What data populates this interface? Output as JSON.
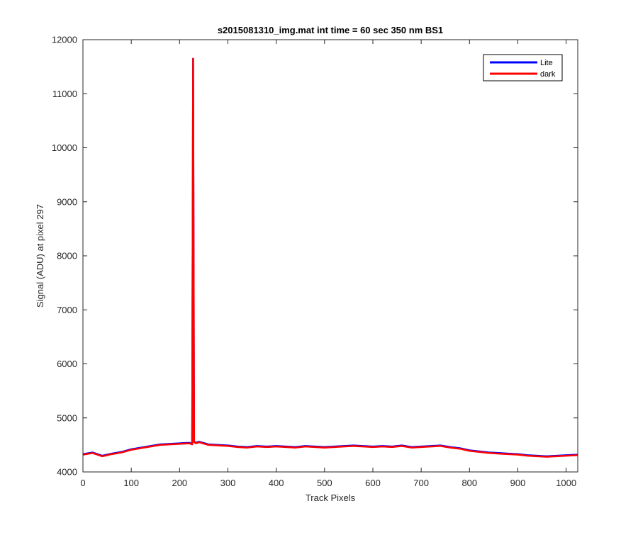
{
  "chart_data": {
    "type": "line",
    "title": "s2015081310_img.mat int time = 60 sec  350 nm BS1",
    "xlabel": "Track Pixels",
    "ylabel": "Signal (ADU) at pixel 297",
    "xlim": [
      0,
      1024
    ],
    "ylim": [
      4000,
      12000
    ],
    "xticks": [
      0,
      100,
      200,
      300,
      400,
      500,
      600,
      700,
      800,
      900,
      1000
    ],
    "yticks": [
      4000,
      5000,
      6000,
      7000,
      8000,
      9000,
      10000,
      11000,
      12000
    ],
    "grid": false,
    "legend_position": "top-right",
    "series": [
      {
        "name": "Lite",
        "color": "#0000ff",
        "x": [
          0,
          20,
          40,
          60,
          80,
          100,
          120,
          140,
          160,
          180,
          200,
          220,
          226,
          228,
          230,
          234,
          240,
          260,
          280,
          300,
          320,
          340,
          360,
          380,
          400,
          420,
          440,
          460,
          480,
          500,
          520,
          540,
          560,
          580,
          600,
          620,
          640,
          660,
          680,
          700,
          720,
          740,
          760,
          780,
          800,
          820,
          840,
          860,
          880,
          900,
          920,
          940,
          960,
          980,
          1000,
          1024
        ],
        "y": [
          4330,
          4360,
          4300,
          4340,
          4370,
          4420,
          4450,
          4480,
          4510,
          4520,
          4530,
          4540,
          4520,
          11650,
          4560,
          4540,
          4560,
          4510,
          4500,
          4490,
          4470,
          4460,
          4480,
          4470,
          4480,
          4470,
          4460,
          4480,
          4470,
          4460,
          4470,
          4480,
          4490,
          4480,
          4470,
          4480,
          4470,
          4490,
          4460,
          4470,
          4480,
          4490,
          4460,
          4440,
          4400,
          4380,
          4360,
          4350,
          4340,
          4330,
          4310,
          4300,
          4290,
          4300,
          4310,
          4320
        ]
      },
      {
        "name": "dark",
        "color": "#ff0000",
        "x": [
          0,
          20,
          40,
          60,
          80,
          100,
          120,
          140,
          160,
          180,
          200,
          220,
          226,
          228,
          230,
          234,
          240,
          260,
          280,
          300,
          320,
          340,
          360,
          380,
          400,
          420,
          440,
          460,
          480,
          500,
          520,
          540,
          560,
          580,
          600,
          620,
          640,
          660,
          680,
          700,
          720,
          740,
          760,
          780,
          800,
          820,
          840,
          860,
          880,
          900,
          920,
          940,
          960,
          980,
          1000,
          1024
        ],
        "y": [
          4320,
          4350,
          4290,
          4330,
          4360,
          4410,
          4440,
          4470,
          4500,
          4510,
          4520,
          4530,
          4510,
          11650,
          4550,
          4530,
          4550,
          4500,
          4490,
          4480,
          4460,
          4450,
          4470,
          4460,
          4470,
          4460,
          4450,
          4470,
          4460,
          4450,
          4460,
          4470,
          4480,
          4470,
          4460,
          4470,
          4460,
          4480,
          4450,
          4460,
          4470,
          4480,
          4450,
          4430,
          4390,
          4370,
          4350,
          4340,
          4330,
          4320,
          4300,
          4290,
          4280,
          4290,
          4300,
          4310
        ]
      }
    ]
  }
}
